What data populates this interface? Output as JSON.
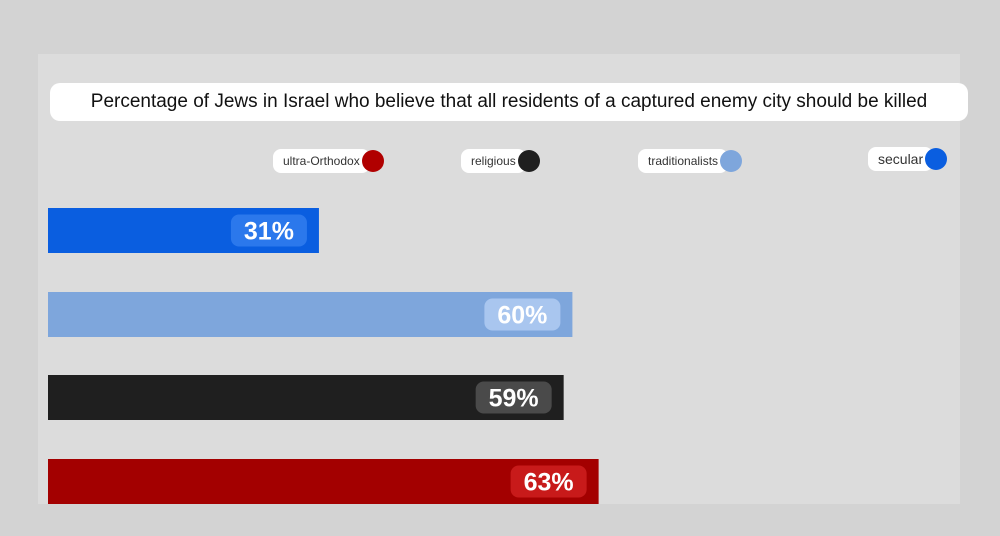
{
  "chart_data": {
    "type": "bar",
    "orientation": "horizontal",
    "title": "Percentage of Jews in Israel who believe that all residents of a captured enemy city should be killed",
    "legend": [
      {
        "label": "ultra-Orthodox",
        "color": "#b00000"
      },
      {
        "label": "religious",
        "color": "#1f1f1f"
      },
      {
        "label": "traditionalists",
        "color": "#7ea6dc"
      },
      {
        "label": "secular",
        "color": "#0a5ee0"
      }
    ],
    "series": [
      {
        "values": [
          31,
          60,
          59,
          63
        ],
        "labels": [
          "31%",
          "60%",
          "59%",
          "63%"
        ]
      }
    ],
    "bar_colors": [
      "#0a5ee0",
      "#7ea6dc",
      "#1f1f1f",
      "#a30000"
    ],
    "value_label_colors": [
      "#2b78ec",
      "#a9c6ef",
      "#4a4a4a",
      "#c81a1a"
    ],
    "xlim": [
      0,
      100
    ],
    "grid": false,
    "legend_position": "top"
  }
}
